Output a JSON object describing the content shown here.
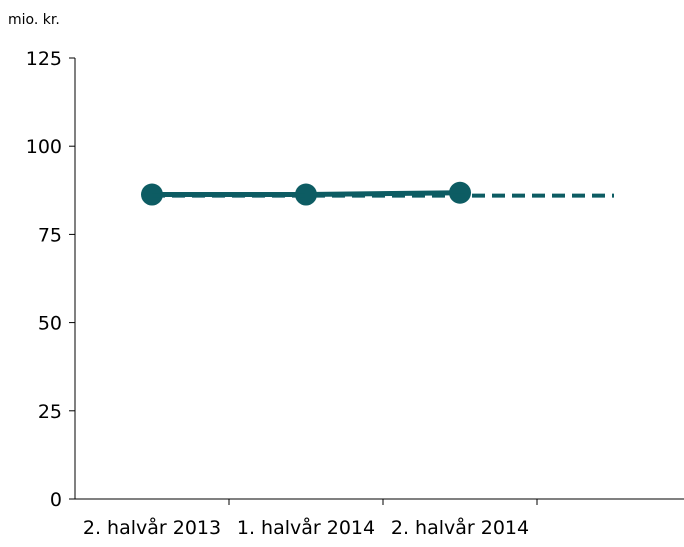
{
  "chart_data": {
    "type": "line",
    "ylabel": "mio. kr.",
    "ylim": [
      0,
      125
    ],
    "yticks": [
      0,
      25,
      50,
      75,
      100,
      125
    ],
    "categories": [
      "2. halvår 2013",
      "1. halvår 2014",
      "2. halvår 2014",
      ""
    ],
    "series": [
      {
        "style": "solid-markers",
        "color": "#0d5c63",
        "values": [
          86.3,
          86.3,
          86.8,
          null
        ]
      },
      {
        "style": "dashed",
        "color": "#0d5c63",
        "values": [
          86.0,
          86.0,
          86.0,
          86.0
        ]
      }
    ],
    "grid": false,
    "legend": "none"
  }
}
